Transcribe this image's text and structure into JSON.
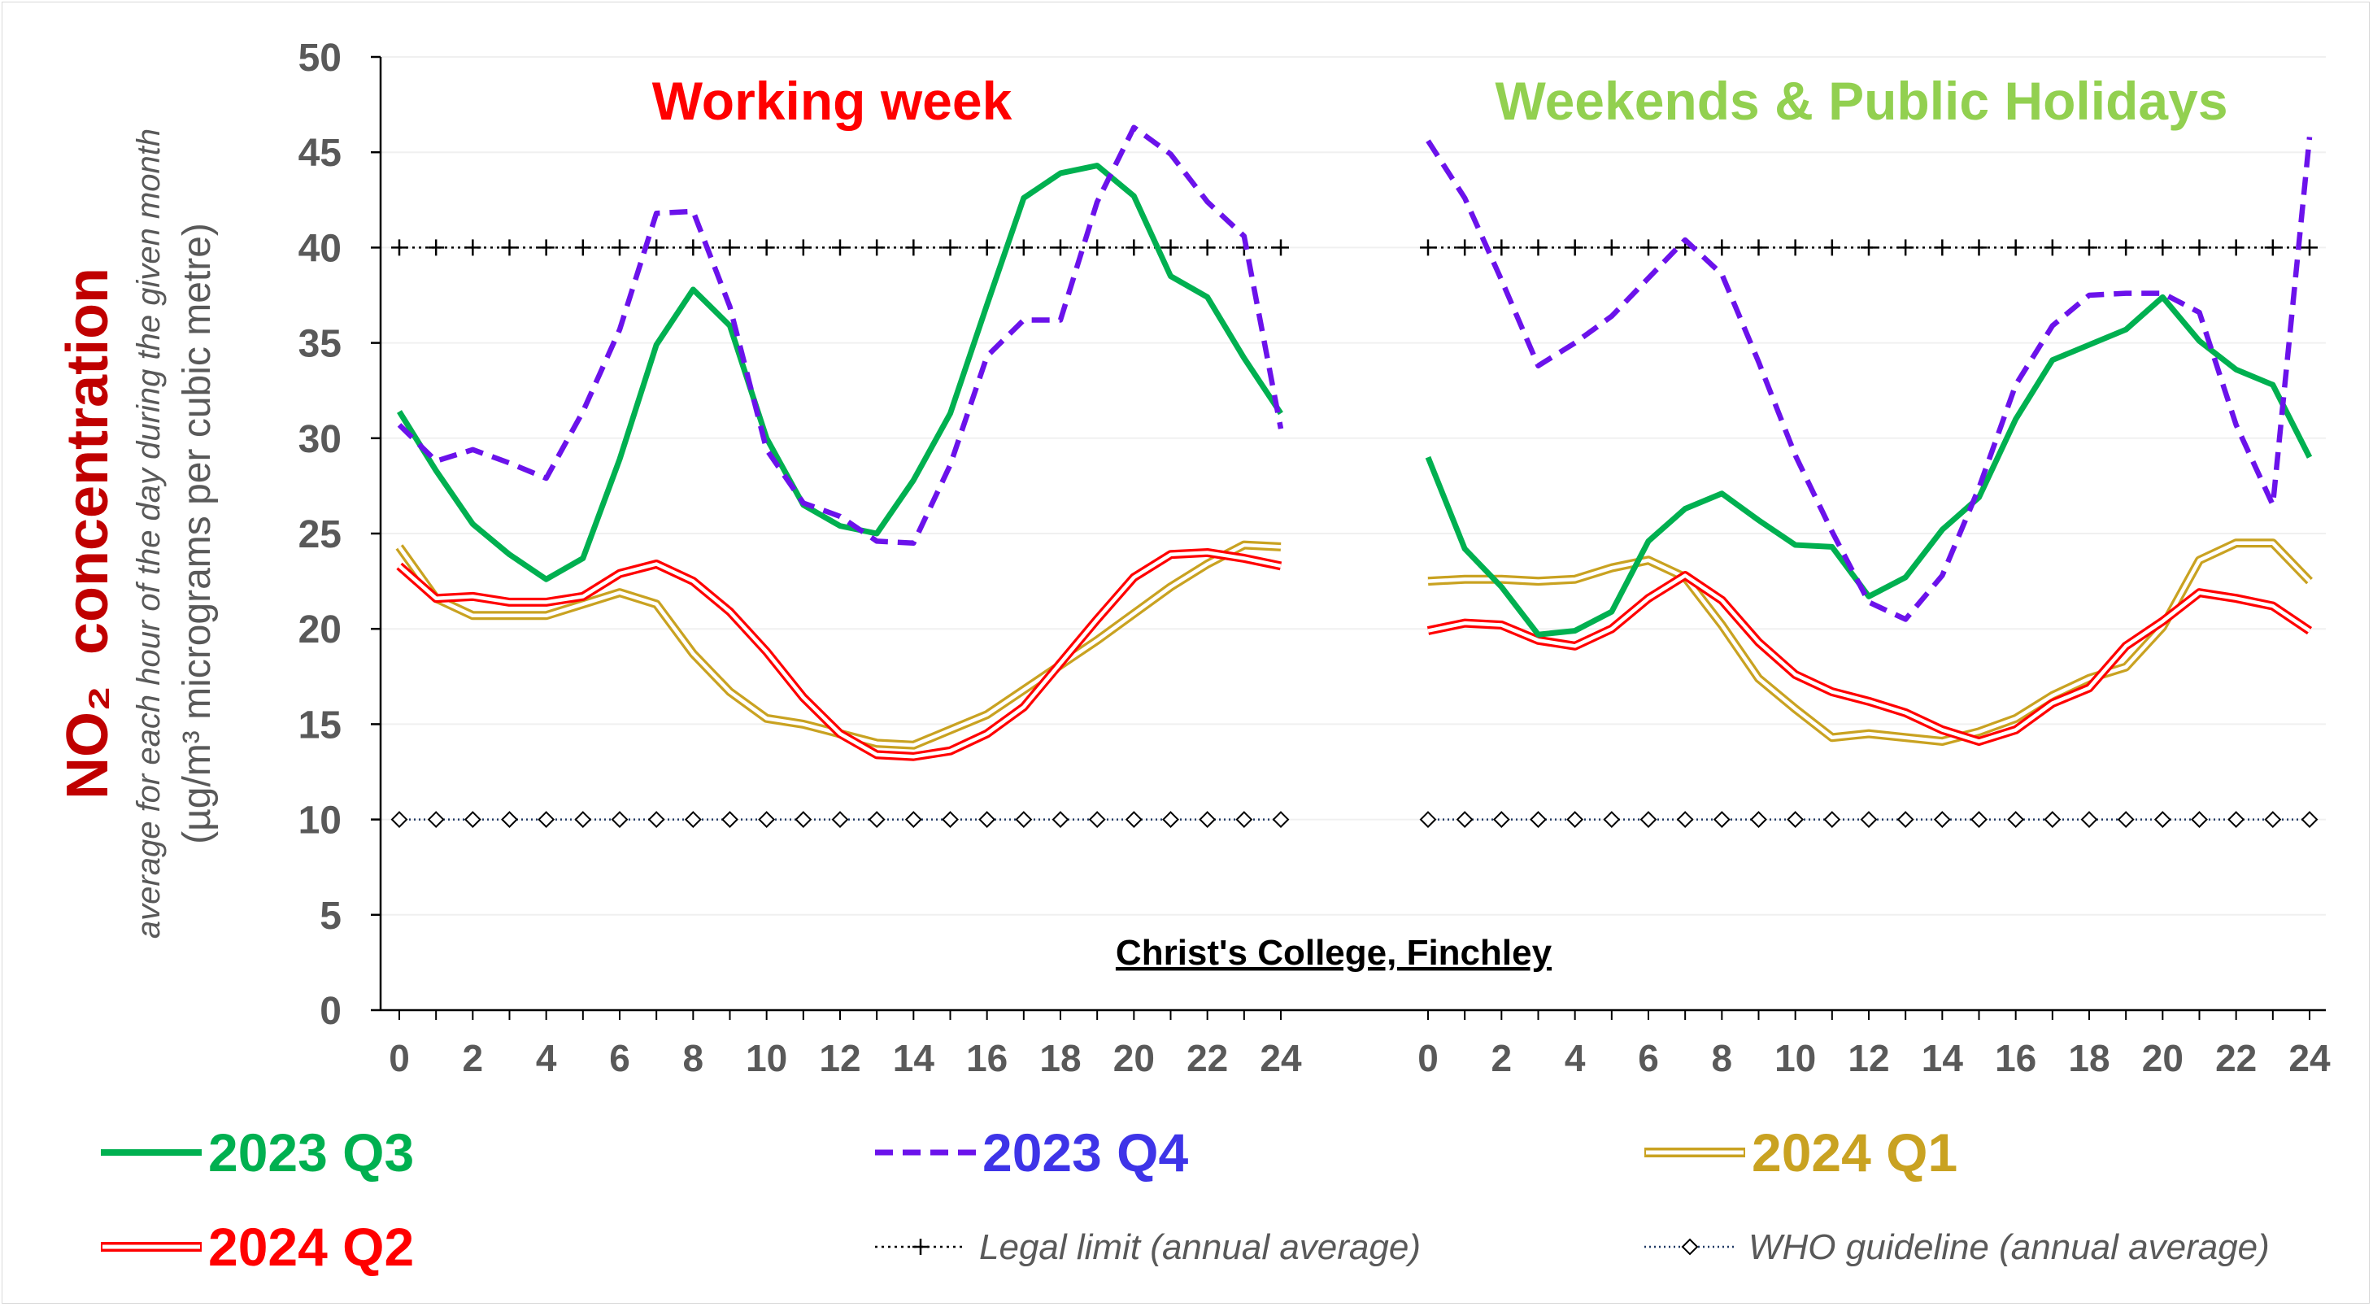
{
  "chart_data": {
    "type": "line",
    "location": "Christ's College, Finchley",
    "y_label_main": "concentration",
    "y_label_formula": "NO₂",
    "y_label_sub": "average for each hour of the day during the given month",
    "y_label_units": "(µg/m³ micrograms per cubic metre)",
    "ylim": [
      0,
      50
    ],
    "y_ticks": [
      "0",
      "5",
      "10",
      "15",
      "20",
      "25",
      "30",
      "35",
      "40",
      "45",
      "50"
    ],
    "x_ticks": [
      "0",
      "2",
      "4",
      "6",
      "8",
      "10",
      "12",
      "14",
      "16",
      "18",
      "20",
      "22",
      "24"
    ],
    "grid": "horizontal",
    "legend_position": "bottom",
    "panels": [
      {
        "title": "Working week",
        "title_color": "#ff0000"
      },
      {
        "title": "Weekends & Public Holidays",
        "title_color": "#92d050"
      }
    ],
    "series": [
      {
        "name": "2023 Q3",
        "color": "#00b050",
        "style": "solid",
        "label_color": "#00b050",
        "working": [
          31.4,
          28.3,
          25.5,
          23.9,
          22.6,
          23.7,
          28.9,
          34.9,
          37.8,
          35.9,
          30.0,
          26.5,
          25.4,
          25.0,
          27.8,
          31.3,
          37.0,
          42.6,
          43.9,
          44.3,
          42.7,
          38.5,
          37.4,
          34.2,
          31.3
        ],
        "weekend": [
          29.0,
          24.2,
          22.2,
          19.7,
          19.9,
          20.9,
          24.6,
          26.3,
          27.1,
          25.7,
          24.4,
          24.3,
          21.7,
          22.7,
          25.2,
          26.9,
          31.0,
          34.1,
          34.9,
          35.7,
          37.4,
          35.1,
          33.6,
          32.8,
          29.0
        ]
      },
      {
        "name": "2023 Q4",
        "color": "#6b12eb",
        "style": "dashed",
        "label_color": "#3e34e8",
        "working": [
          30.7,
          28.8,
          29.4,
          28.7,
          27.9,
          31.4,
          35.7,
          41.8,
          41.9,
          36.9,
          29.4,
          26.6,
          25.9,
          24.6,
          24.5,
          28.6,
          34.3,
          36.2,
          36.2,
          42.4,
          46.3,
          44.9,
          42.4,
          40.6,
          30.5
        ],
        "weekend": [
          45.6,
          42.6,
          38.3,
          33.8,
          35.0,
          36.4,
          38.4,
          40.4,
          38.6,
          34.0,
          29.1,
          25.1,
          21.4,
          20.5,
          22.8,
          27.4,
          32.8,
          35.9,
          37.5,
          37.6,
          37.6,
          36.6,
          30.7,
          26.5,
          45.8
        ]
      },
      {
        "name": "2024 Q1",
        "color": "#c9a221",
        "style": "double",
        "label_color": "#c9a221",
        "working": [
          24.3,
          21.6,
          20.7,
          20.7,
          20.7,
          21.3,
          21.9,
          21.3,
          18.7,
          16.7,
          15.3,
          15.0,
          14.5,
          14.0,
          13.9,
          14.7,
          15.5,
          16.8,
          18.1,
          19.4,
          20.8,
          22.2,
          23.4,
          24.4,
          24.3
        ],
        "weekend": [
          22.5,
          22.6,
          22.6,
          22.5,
          22.6,
          23.2,
          23.6,
          22.7,
          20.2,
          17.4,
          15.8,
          14.3,
          14.5,
          14.3,
          14.1,
          14.6,
          15.3,
          16.5,
          17.4,
          18.0,
          20.1,
          23.6,
          24.5,
          24.5,
          22.5
        ]
      },
      {
        "name": "2024 Q2",
        "color": "#ff0000",
        "style": "double",
        "label_color": "#ff0000",
        "working": [
          23.3,
          21.6,
          21.7,
          21.4,
          21.4,
          21.7,
          22.9,
          23.4,
          22.5,
          20.9,
          18.8,
          16.4,
          14.5,
          13.4,
          13.3,
          13.6,
          14.5,
          15.9,
          18.2,
          20.5,
          22.7,
          23.9,
          24.0,
          23.7,
          23.3
        ],
        "weekend": [
          19.9,
          20.3,
          20.2,
          19.4,
          19.1,
          20.0,
          21.6,
          22.8,
          21.5,
          19.3,
          17.6,
          16.7,
          16.2,
          15.6,
          14.7,
          14.1,
          14.7,
          16.1,
          16.9,
          19.1,
          20.4,
          21.9,
          21.6,
          21.2,
          19.9
        ]
      }
    ],
    "reference_lines": [
      {
        "name": "Legal limit (annual average)",
        "value": 40,
        "color": "#000000",
        "marker": "plus"
      },
      {
        "name": "WHO guideline (annual average)",
        "value": 10,
        "color": "#1f3864",
        "marker": "diamond"
      }
    ]
  }
}
